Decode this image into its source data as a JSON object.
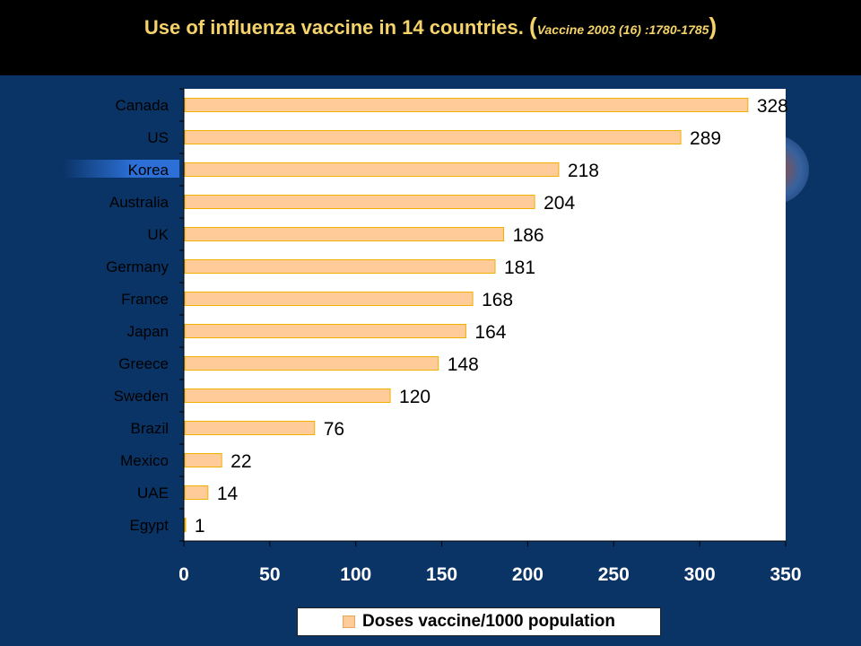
{
  "header": {
    "title_main": "Use of influenza vaccine in 14 countries.",
    "paren_open": "(",
    "citation": "Vaccine 2003 (16) :1780-1785",
    "paren_close": ")"
  },
  "colors": {
    "background": "#0b3466",
    "header_bg": "#000000",
    "title": "#f5d36a",
    "bar_fill": "#ffcc99",
    "bar_border": "#f0b000",
    "plot_bg": "#ffffff",
    "tick_text": "#ffffff"
  },
  "chart_data": {
    "type": "bar",
    "orientation": "horizontal",
    "categories": [
      "Canada",
      "US",
      "Korea",
      "Australia",
      "UK",
      "Germany",
      "France",
      "Japan",
      "Greece",
      "Sweden",
      "Brazil",
      "Mexico",
      "UAE",
      "Egypt"
    ],
    "series": [
      {
        "name": "Doses vaccine/1000 population",
        "values": [
          328,
          289,
          218,
          204,
          186,
          181,
          168,
          164,
          148,
          120,
          76,
          22,
          14,
          1
        ]
      }
    ],
    "data_labels": [
      "328",
      "289",
      "218",
      "204",
      "186",
      "181",
      "168",
      "164",
      "148",
      "120",
      "76",
      "22",
      "14",
      "1"
    ],
    "xlim": [
      0,
      350
    ],
    "x_ticks": [
      "0",
      "50",
      "100",
      "150",
      "200",
      "250",
      "300",
      "350"
    ],
    "xlabel": "",
    "ylabel": "",
    "grid": false,
    "legend_position": "bottom"
  }
}
